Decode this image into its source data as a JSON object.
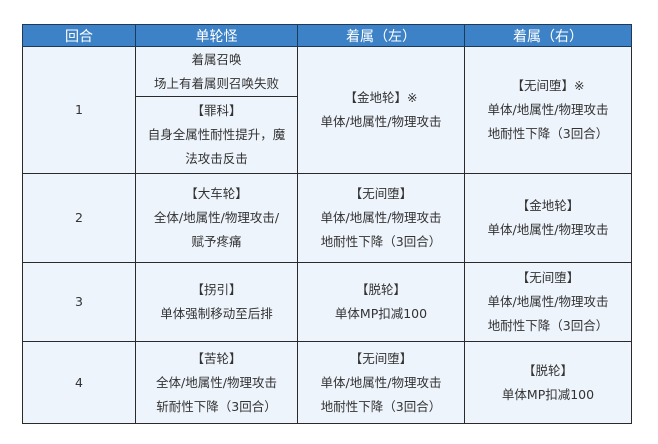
{
  "headers": [
    "回合",
    "单轮怪",
    "着属（左）",
    "着属（右）"
  ],
  "rows": [
    {
      "round": "1",
      "monster": [
        [
          "着属召唤",
          "场上有着属则召唤失败"
        ],
        [
          "【罪科】",
          "自身全属性耐性提升，魔",
          "法攻击反击"
        ]
      ],
      "left": [
        "【金地轮】※",
        "单体/地属性/物理攻击"
      ],
      "right": [
        "【无间堕】※",
        "单体/地属性/物理攻击",
        "地耐性下降（3回合）"
      ]
    },
    {
      "round": "2",
      "monster": [
        "【大车轮】",
        "全体/地属性/物理攻击/",
        "赋予疼痛"
      ],
      "left": [
        "【无间堕】",
        "单体/地属性/物理攻击",
        "地耐性下降（3回合）"
      ],
      "right": [
        "【金地轮】",
        "单体/地属性/物理攻击"
      ]
    },
    {
      "round": "3",
      "monster": [
        "【拐引】",
        "单体强制移动至后排"
      ],
      "left": [
        "【脱轮】",
        "单体MP扣减100"
      ],
      "right": [
        "【无间堕】",
        "单体/地属性/物理攻击",
        "地耐性下降（3回合）"
      ]
    },
    {
      "round": "4",
      "monster": [
        "【苦轮】",
        "全体/地属性/物理攻击",
        "斩耐性下降（3回合）"
      ],
      "left": [
        "【无间堕】",
        "单体/地属性/物理攻击",
        "地耐性下降（3回合）"
      ],
      "right": [
        "【脱轮】",
        "单体MP扣减100"
      ]
    }
  ],
  "colors": {
    "header_bg": "#3d82c6",
    "cell_bg": "#eef4fc"
  }
}
